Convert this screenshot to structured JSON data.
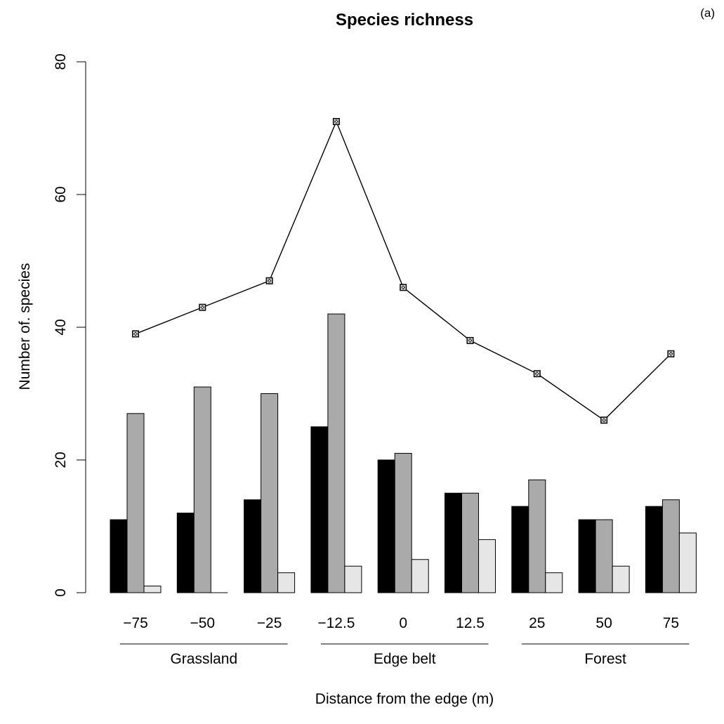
{
  "chart_data": {
    "type": "bar",
    "title": "Species richness",
    "panel_label": "(a)",
    "xlabel": "Distance from the edge (m)",
    "ylabel": "Number of. species",
    "ylim": [
      0,
      80
    ],
    "yticks": [
      0,
      20,
      40,
      60,
      80
    ],
    "grid": false,
    "categories": [
      "−75",
      "−50",
      "−25",
      "−12.5",
      "0",
      "12.5",
      "25",
      "50",
      "75"
    ],
    "series": [
      {
        "values": [
          11,
          12,
          14,
          25,
          20,
          15,
          13,
          11,
          13
        ],
        "color": "#000000"
      },
      {
        "values": [
          27,
          31,
          30,
          42,
          21,
          15,
          17,
          11,
          14
        ],
        "color": "#aaaaaa"
      },
      {
        "values": [
          1,
          0,
          3,
          4,
          5,
          8,
          3,
          4,
          9
        ],
        "color": "#e6e6e6"
      }
    ],
    "line_series": {
      "type": "line",
      "values": [
        39,
        43,
        47,
        71,
        46,
        38,
        33,
        26,
        36
      ],
      "marker": "square"
    },
    "groups": [
      {
        "label": "Grassland",
        "categories": [
          "−75",
          "−50",
          "−25"
        ]
      },
      {
        "label": "Edge belt",
        "categories": [
          "−12.5",
          "0",
          "12.5"
        ]
      },
      {
        "label": "Forest",
        "categories": [
          "25",
          "50",
          "75"
        ]
      }
    ]
  }
}
